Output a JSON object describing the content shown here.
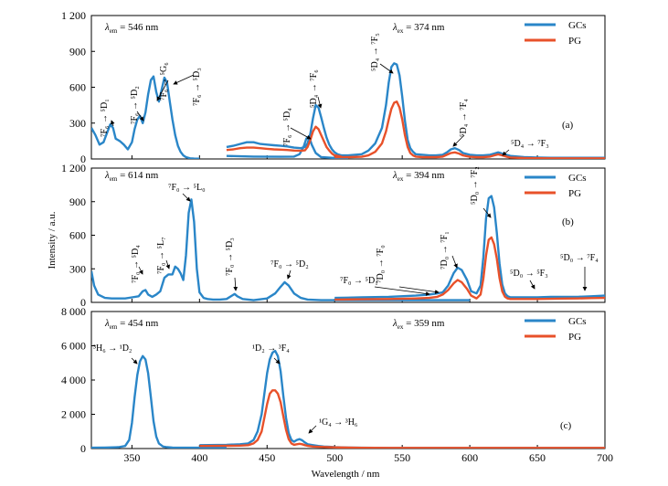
{
  "figure": {
    "xlabel": "Wavelength / nm",
    "ylabel": "Intensity / a.u.",
    "xlim": [
      320,
      700
    ],
    "x_ticks": [
      350,
      400,
      450,
      500,
      550,
      600,
      650,
      700
    ],
    "colors": {
      "GCs": "#2a86c8",
      "PG": "#e8512a",
      "frame": "#000000"
    }
  },
  "chart_data": [
    {
      "panel_label": "(a)",
      "type": "line",
      "xlabel": "Wavelength / nm",
      "ylabel": "Intensity / a.u.",
      "xlim": [
        320,
        700
      ],
      "ylim": [
        0,
        1200
      ],
      "y_ticks": [
        0,
        300,
        600,
        900,
        1200
      ],
      "y_tick_labels": [
        "0",
        "300",
        "600",
        "900",
        "1 200"
      ],
      "lambda_em": {
        "prefix": "λ",
        "sub": "em",
        "value": "= 546 nm"
      },
      "lambda_ex": {
        "prefix": "λ",
        "sub": "ex",
        "value": "= 374 nm"
      },
      "legend": {
        "placement": "top-right",
        "entries": [
          "GCs",
          "PG"
        ]
      },
      "series": [
        {
          "name": "GCs",
          "color": "#2a86c8",
          "x": [
            320,
            323,
            326,
            329,
            332,
            334,
            336,
            338,
            341,
            344,
            347,
            350,
            352,
            354,
            356,
            358,
            360,
            362,
            364,
            366,
            368,
            370,
            372,
            374,
            376,
            378,
            380,
            382,
            384,
            386,
            388,
            390,
            393,
            396,
            400
          ],
          "y": [
            260,
            200,
            120,
            140,
            230,
            290,
            260,
            170,
            150,
            120,
            80,
            140,
            250,
            330,
            360,
            300,
            390,
            540,
            660,
            690,
            560,
            480,
            580,
            680,
            640,
            480,
            330,
            200,
            110,
            60,
            30,
            15,
            5,
            3,
            2
          ]
        },
        {
          "name": "GCs",
          "color": "#2a86c8",
          "x": [
            420,
            425,
            430,
            435,
            440,
            445,
            450,
            455,
            460,
            465,
            470,
            475,
            478,
            480,
            482,
            484,
            486,
            488,
            490,
            492,
            494,
            496,
            498,
            500,
            502,
            505
          ],
          "y": [
            100,
            110,
            125,
            140,
            140,
            125,
            120,
            115,
            110,
            105,
            95,
            90,
            100,
            130,
            210,
            340,
            450,
            430,
            350,
            260,
            180,
            120,
            80,
            55,
            40,
            30
          ]
        },
        {
          "name": "GCs",
          "color": "#2a86c8",
          "x": [
            420,
            440,
            460,
            470,
            474,
            477,
            479,
            481,
            483,
            486,
            490,
            500,
            510
          ],
          "y": [
            25,
            20,
            18,
            20,
            40,
            100,
            170,
            190,
            120,
            50,
            15,
            8,
            5
          ]
        },
        {
          "name": "GCs",
          "color": "#2a86c8",
          "x": [
            500,
            510,
            520,
            525,
            530,
            535,
            538,
            540,
            542,
            544,
            546,
            548,
            550,
            552,
            554,
            556,
            558,
            560,
            565,
            570,
            575,
            580,
            583,
            586,
            589,
            592,
            595,
            600,
            605,
            610,
            615,
            618,
            621,
            624,
            627,
            630,
            640,
            650,
            660,
            670,
            680,
            690,
            700
          ],
          "y": [
            30,
            30,
            40,
            70,
            130,
            260,
            450,
            640,
            770,
            800,
            790,
            700,
            520,
            320,
            160,
            90,
            60,
            40,
            35,
            30,
            30,
            35,
            55,
            80,
            90,
            75,
            50,
            35,
            30,
            30,
            35,
            45,
            55,
            45,
            35,
            25,
            15,
            12,
            10,
            10,
            10,
            10,
            10
          ]
        },
        {
          "name": "PG",
          "color": "#e8512a",
          "x": [
            420,
            425,
            430,
            435,
            440,
            445,
            450,
            455,
            460,
            465,
            470,
            475,
            478,
            480,
            482,
            484,
            486,
            488,
            490,
            492,
            494,
            496,
            498,
            500,
            505
          ],
          "y": [
            75,
            80,
            90,
            95,
            95,
            90,
            85,
            80,
            78,
            75,
            70,
            68,
            72,
            100,
            160,
            230,
            270,
            250,
            200,
            150,
            100,
            70,
            45,
            30,
            20
          ]
        },
        {
          "name": "PG",
          "color": "#e8512a",
          "x": [
            500,
            510,
            520,
            525,
            530,
            535,
            538,
            540,
            542,
            544,
            546,
            548,
            550,
            552,
            554,
            556,
            558,
            560,
            565,
            570,
            575,
            580,
            583,
            586,
            589,
            592,
            595,
            600,
            605,
            610,
            615,
            618,
            621,
            624,
            627,
            630,
            640,
            650,
            660,
            670,
            680,
            690,
            700
          ],
          "y": [
            15,
            15,
            18,
            30,
            60,
            130,
            230,
            330,
            420,
            470,
            480,
            430,
            330,
            200,
            100,
            50,
            30,
            20,
            15,
            15,
            15,
            20,
            35,
            50,
            55,
            45,
            30,
            18,
            15,
            15,
            20,
            30,
            38,
            30,
            20,
            12,
            8,
            6,
            5,
            5,
            5,
            5,
            5
          ]
        }
      ],
      "annotations": [
        {
          "text": "⁷F₆ → ⁵D₁"
        },
        {
          "text": "⁷F₆ → ⁵D₂"
        },
        {
          "text": "⁷F₆ → ⁵G₆"
        },
        {
          "text": "⁷F₆ → ⁵D₃"
        },
        {
          "text": "⁷F₆ → ⁵D₄"
        },
        {
          "text": "⁵D₄ → ⁷F₆"
        },
        {
          "text": "⁵D₄ → ⁷F₅"
        },
        {
          "text": "⁵D₄ → ⁷F₄"
        },
        {
          "text": "⁵D₄ → ⁷F₃"
        }
      ]
    },
    {
      "panel_label": "(b)",
      "type": "line",
      "xlabel": "Wavelength / nm",
      "ylabel": "Intensity / a.u.",
      "xlim": [
        320,
        700
      ],
      "ylim": [
        0,
        1200
      ],
      "y_ticks": [
        0,
        300,
        600,
        900,
        1200
      ],
      "y_tick_labels": [
        "0",
        "300",
        "600",
        "900",
        "1 200"
      ],
      "lambda_em": {
        "prefix": "λ",
        "sub": "em",
        "value": "= 614 nm"
      },
      "lambda_ex": {
        "prefix": "λ",
        "sub": "ex",
        "value": "= 394 nm"
      },
      "legend": {
        "placement": "top-right",
        "entries": [
          "GCs",
          "PG"
        ]
      },
      "series": [
        {
          "name": "GCs",
          "color": "#2a86c8",
          "x": [
            320,
            322,
            325,
            330,
            335,
            340,
            345,
            350,
            355,
            358,
            360,
            362,
            365,
            368,
            371,
            374,
            377,
            380,
            382,
            384,
            386,
            388,
            390,
            392,
            394,
            396,
            398,
            400,
            403,
            406,
            410,
            415,
            420,
            424,
            426,
            428,
            432,
            440,
            450,
            456,
            460,
            463,
            466,
            470,
            475,
            480,
            490,
            500,
            510,
            520,
            530,
            540,
            560,
            580,
            600
          ],
          "y": [
            280,
            150,
            70,
            40,
            35,
            35,
            35,
            45,
            55,
            100,
            110,
            70,
            50,
            70,
            100,
            220,
            250,
            250,
            320,
            300,
            260,
            200,
            420,
            800,
            920,
            720,
            300,
            90,
            40,
            30,
            25,
            25,
            30,
            60,
            75,
            55,
            30,
            20,
            35,
            80,
            140,
            180,
            150,
            80,
            40,
            25,
            20,
            20,
            20,
            20,
            20,
            20,
            20,
            20,
            20
          ]
        },
        {
          "name": "GCs",
          "color": "#2a86c8",
          "x": [
            500,
            520,
            540,
            560,
            570,
            576,
            580,
            584,
            588,
            591,
            594,
            598,
            601,
            605,
            608,
            610,
            612,
            614,
            616,
            618,
            620,
            622,
            624,
            626,
            628,
            630,
            633,
            640,
            650,
            660,
            670,
            680,
            690,
            700
          ],
          "y": [
            40,
            45,
            50,
            60,
            70,
            80,
            90,
            150,
            260,
            310,
            290,
            200,
            100,
            80,
            150,
            400,
            750,
            930,
            950,
            850,
            620,
            350,
            160,
            80,
            55,
            45,
            45,
            45,
            45,
            50,
            50,
            50,
            55,
            60
          ]
        },
        {
          "name": "PG",
          "color": "#e8512a",
          "x": [
            500,
            520,
            540,
            560,
            570,
            576,
            580,
            584,
            588,
            591,
            594,
            598,
            601,
            605,
            608,
            610,
            612,
            614,
            616,
            618,
            620,
            622,
            624,
            626,
            628,
            630,
            633,
            640,
            650,
            660,
            670,
            680,
            690,
            700
          ],
          "y": [
            25,
            28,
            30,
            35,
            40,
            50,
            70,
            110,
            170,
            200,
            180,
            120,
            60,
            35,
            70,
            210,
            420,
            560,
            580,
            520,
            390,
            220,
            100,
            50,
            35,
            30,
            30,
            30,
            30,
            32,
            34,
            35,
            38,
            40
          ]
        }
      ],
      "annotations": [
        {
          "text": "⁷F₀ → ⁵D₄"
        },
        {
          "text": "⁷F₀ → ⁵L₇"
        },
        {
          "text": "⁷F₀ → ⁵L₀"
        },
        {
          "text": "⁷F₀ → ⁵D₃"
        },
        {
          "text": "⁷F₀ → ⁵D₂"
        },
        {
          "text": "⁷F₀ → ⁵D₁"
        },
        {
          "text": "⁷D₀ → ⁷F₀"
        },
        {
          "text": "⁷D₀ → ⁷F₁"
        },
        {
          "text": "⁵D₀ → ⁷F₂"
        },
        {
          "text": "⁵D₀ → ⁵F₃"
        },
        {
          "text": "⁵D₀ → ⁷F₄"
        }
      ]
    },
    {
      "panel_label": "(c)",
      "type": "line",
      "xlabel": "Wavelength / nm",
      "ylabel": "Intensity / a.u.",
      "xlim": [
        320,
        700
      ],
      "ylim": [
        0,
        8000
      ],
      "y_ticks": [
        0,
        2000,
        4000,
        6000,
        8000
      ],
      "y_tick_labels": [
        "0",
        "2 000",
        "4 000",
        "6 000",
        "8 000"
      ],
      "lambda_em": {
        "prefix": "λ",
        "sub": "em",
        "value": "= 454 nm"
      },
      "lambda_ex": {
        "prefix": "λ",
        "sub": "ex",
        "value": "= 359 nm"
      },
      "legend": {
        "placement": "top-right",
        "entries": [
          "GCs",
          "PG"
        ]
      },
      "series": [
        {
          "name": "GCs",
          "color": "#2a86c8",
          "x": [
            320,
            330,
            340,
            345,
            348,
            350,
            352,
            354,
            356,
            358,
            360,
            362,
            364,
            366,
            368,
            370,
            373,
            376,
            380,
            390,
            400,
            410,
            420
          ],
          "y": [
            50,
            60,
            80,
            150,
            500,
            1500,
            3000,
            4300,
            5100,
            5400,
            5200,
            4400,
            3000,
            1600,
            700,
            300,
            120,
            80,
            60,
            50,
            50,
            50,
            50
          ]
        },
        {
          "name": "GCs",
          "color": "#2a86c8",
          "x": [
            400,
            420,
            430,
            436,
            440,
            443,
            446,
            448,
            450,
            452,
            454,
            456,
            458,
            460,
            462,
            464,
            466,
            468,
            470,
            472,
            474,
            476,
            478,
            480,
            484,
            488,
            492,
            496,
            500,
            510,
            520,
            540,
            560,
            580,
            600,
            620,
            640,
            660,
            680,
            700
          ],
          "y": [
            200,
            220,
            250,
            300,
            500,
            1000,
            2000,
            3200,
            4400,
            5200,
            5600,
            5700,
            5400,
            4500,
            3100,
            1800,
            900,
            500,
            400,
            500,
            550,
            480,
            350,
            250,
            200,
            150,
            120,
            100,
            80,
            60,
            50,
            40,
            40,
            40,
            40,
            40,
            40,
            40,
            40,
            40
          ]
        },
        {
          "name": "PG",
          "color": "#e8512a",
          "x": [
            400,
            420,
            430,
            436,
            440,
            443,
            446,
            448,
            450,
            452,
            454,
            456,
            458,
            460,
            462,
            464,
            466,
            468,
            470,
            472,
            474,
            476,
            478,
            480,
            484,
            488,
            492,
            496,
            500,
            510,
            520,
            540,
            560,
            580,
            600,
            620,
            640,
            660,
            680,
            700
          ],
          "y": [
            150,
            160,
            170,
            200,
            300,
            500,
            1000,
            1800,
            2600,
            3200,
            3400,
            3400,
            3200,
            2700,
            1900,
            1100,
            550,
            300,
            220,
            250,
            280,
            250,
            200,
            160,
            120,
            100,
            90,
            80,
            70,
            55,
            45,
            35,
            35,
            35,
            35,
            35,
            35,
            35,
            35,
            35
          ]
        }
      ],
      "annotations": [
        {
          "text": "³H₆ → ¹D₂"
        },
        {
          "text": "¹D₂ → ³F₄"
        },
        {
          "text": "¹G₄ → ³H₆"
        }
      ]
    }
  ]
}
